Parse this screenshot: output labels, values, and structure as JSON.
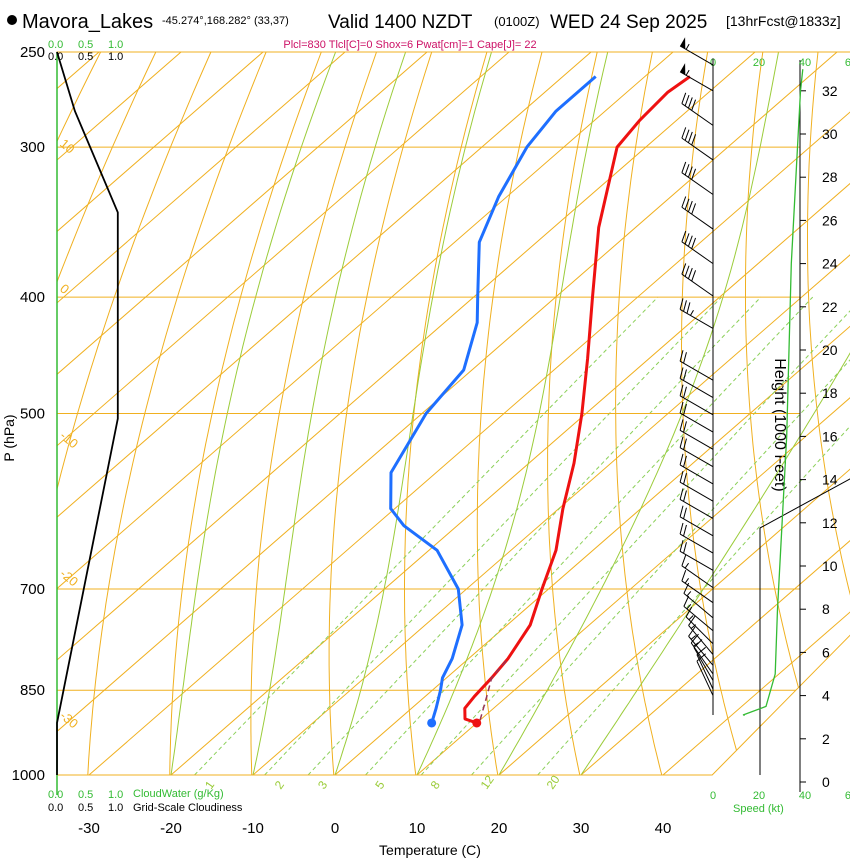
{
  "header": {
    "station": "Mavora_Lakes",
    "location": "-45.274°,168.282° (33,37)",
    "valid": "Valid 1400 NZDT",
    "utc": "(0100Z)",
    "date": "WED 24 Sep 2025",
    "forecast": "[13hrFcst@1833z]",
    "params": "Plcl=830 Tlcl[C]=0 Shox=6 Pwat[cm]=1 Cape[J]= 22"
  },
  "chart_data": {
    "type": "line",
    "subtype": "skew-t log-p sounding",
    "xlabel": "Temperature (C)",
    "ylabel": "P (hPa)",
    "right_label": "Height (1000 Feet)",
    "x_ticks": [
      "-30",
      "-20",
      "-10",
      "0",
      "10",
      "20",
      "30",
      "40"
    ],
    "x_tick_values": [
      -30,
      -20,
      -10,
      0,
      10,
      20,
      30,
      40
    ],
    "p_ticks": [
      "250",
      "300",
      "400",
      "500",
      "700",
      "850",
      "1000"
    ],
    "p_tick_values": [
      250,
      300,
      400,
      500,
      700,
      850,
      1000
    ],
    "height_ticks": [
      "0",
      "2",
      "4",
      "6",
      "8",
      "10",
      "12",
      "14",
      "16",
      "18",
      "20",
      "22",
      "24",
      "26",
      "28",
      "30",
      "32"
    ],
    "height_tick_values": [
      0,
      2,
      4,
      6,
      8,
      10,
      12,
      14,
      16,
      18,
      20,
      22,
      24,
      26,
      28,
      30,
      32
    ],
    "pressure_range": [
      1000,
      250
    ],
    "temperature_range_at_1000hPa": [
      -34,
      46
    ],
    "series": [
      {
        "role": "temperature",
        "color": "#ee1111",
        "p": [
          905,
          898,
          880,
          860,
          830,
          800,
          750,
          700,
          650,
          600,
          550,
          500,
          450,
          400,
          350,
          300,
          285,
          270,
          262
        ],
        "t": [
          10.0,
          8.0,
          6.5,
          6.0,
          5.5,
          4.8,
          2.8,
          -0.8,
          -4.5,
          -9.5,
          -14.5,
          -20.5,
          -27.5,
          -35.5,
          -44.5,
          -53.5,
          -54.5,
          -55.0,
          -54.5
        ]
      },
      {
        "role": "dewpoint",
        "color": "#1e6fff",
        "p": [
          905,
          880,
          850,
          830,
          800,
          750,
          700,
          650,
          620,
          600,
          560,
          500,
          460,
          420,
          400,
          360,
          330,
          300,
          280,
          262
        ],
        "t": [
          4.5,
          3.0,
          1.0,
          -0.5,
          -2.0,
          -5.5,
          -11.0,
          -19.0,
          -26.5,
          -30.5,
          -35.5,
          -39.5,
          -41.0,
          -46.0,
          -49.5,
          -57.0,
          -61.0,
          -64.5,
          -66.0,
          -66.0
        ]
      },
      {
        "role": "parcel",
        "color": "#993355",
        "style": "dashed",
        "p": [
          900,
          860,
          830,
          800
        ],
        "t": [
          10.0,
          7.5,
          5.5,
          4.8
        ]
      }
    ],
    "surface_temperature": {
      "p": 905,
      "t": 10.0,
      "color": "#ee1111"
    },
    "surface_dewpoint": {
      "p": 905,
      "t": 4.5,
      "color": "#1e6fff"
    },
    "isotherm_labels": [
      "0",
      "10",
      "20",
      "30"
    ],
    "isotherm_label_values": [
      0,
      10,
      20,
      30
    ],
    "dry_adiabat_labels": [
      "10",
      "0",
      "-10",
      "-20",
      "-30"
    ],
    "dry_adiabat_label_values": [
      10,
      0,
      -10,
      -20,
      -30
    ],
    "mixing_ratio_labels": [
      "1",
      "2",
      "3",
      "5",
      "8",
      "12",
      "20"
    ],
    "mixing_ratio_label_values": [
      1,
      2,
      3,
      5,
      8,
      12,
      20
    ],
    "cloud_water_scale": {
      "ticks": [
        "0.0",
        "0.5",
        "1.0"
      ],
      "color": "#33bb33",
      "label": "CloudWater (g/Kg)",
      "profile_p": [
        1000,
        905,
        500,
        400,
        250
      ],
      "profile_v": [
        0,
        0,
        0,
        0,
        0
      ]
    },
    "cloudiness_scale": {
      "ticks": [
        "0.0",
        "0.5",
        "1.0"
      ],
      "color": "#000000",
      "label": "Grid-Scale Cloudiness",
      "profile_p": [
        1000,
        905,
        505,
        340,
        280,
        250
      ],
      "profile_v": [
        0,
        0,
        0.95,
        0.95,
        0.28,
        0
      ]
    },
    "wind_speed_scale": {
      "ticks": [
        "0",
        "20",
        "40",
        "60"
      ],
      "color": "#33bb33",
      "label": "Speed (kt)",
      "profile_h": [
        3.1,
        3.5,
        5,
        8,
        12,
        16,
        20,
        24,
        28,
        30,
        32,
        33
      ],
      "profile_v": [
        0,
        10,
        14,
        15,
        17,
        19,
        20,
        21,
        23,
        24,
        25,
        26
      ]
    },
    "winds": {
      "h": [
        4.0,
        4.3,
        4.7,
        5.0,
        5.4,
        5.9,
        6.4,
        7.0,
        7.6,
        8.3,
        9.0,
        9.8,
        10.6,
        11.4,
        12.2,
        13.0,
        13.8,
        14.6,
        15.4,
        16.2,
        17.0,
        17.8,
        18.6,
        21.0,
        22.5,
        24.0,
        25.6,
        27.2,
        28.8,
        30.4,
        32.0,
        33.2
      ],
      "spd": [
        10,
        10,
        10,
        15,
        15,
        15,
        15,
        15,
        15,
        15,
        15,
        20,
        20,
        20,
        20,
        20,
        20,
        20,
        20,
        20,
        20,
        20,
        20,
        35,
        40,
        40,
        40,
        40,
        40,
        40,
        55,
        55
      ],
      "dir": [
        335,
        335,
        330,
        325,
        320,
        320,
        315,
        310,
        310,
        305,
        305,
        300,
        300,
        300,
        300,
        300,
        300,
        300,
        300,
        300,
        300,
        300,
        300,
        300,
        305,
        305,
        305,
        305,
        305,
        305,
        300,
        300
      ]
    }
  }
}
